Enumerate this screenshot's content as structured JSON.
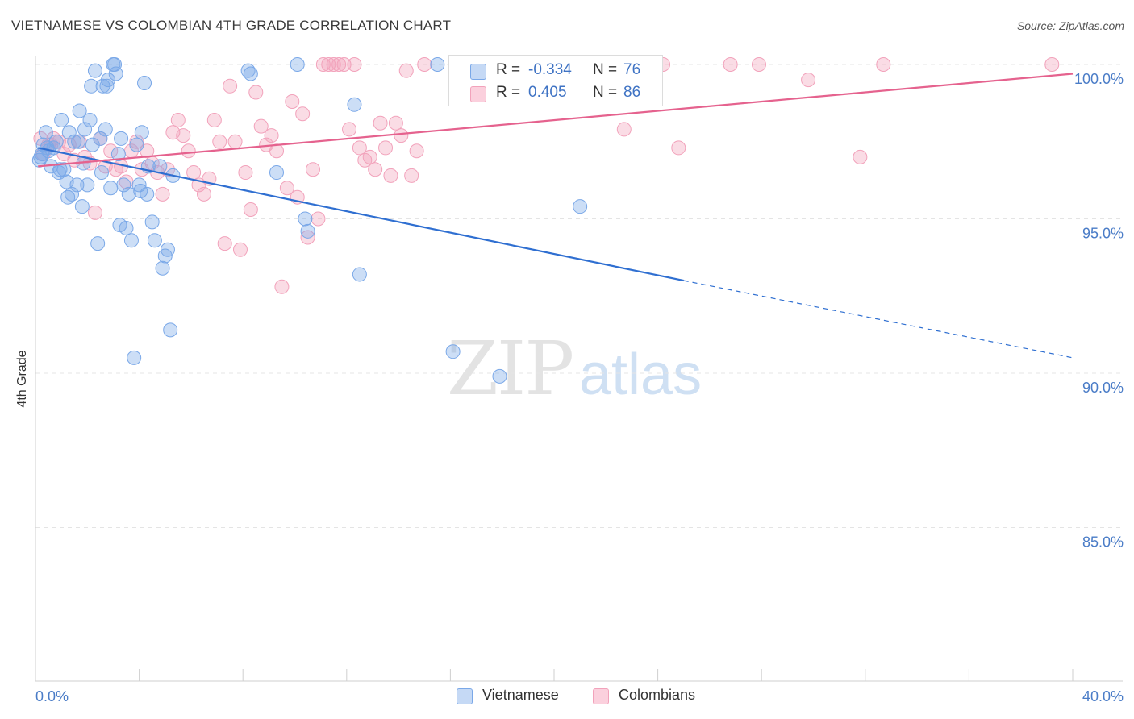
{
  "header": {
    "title": "VIETNAMESE VS COLOMBIAN 4TH GRADE CORRELATION CHART",
    "source": "Source: ZipAtlas.com"
  },
  "watermark": {
    "zip": "ZIP",
    "atlas": "atlas"
  },
  "legend": {
    "vietnamese": {
      "r_label": "R =",
      "r_value": "-0.334",
      "n_label": "N =",
      "n_value": "76"
    },
    "colombians": {
      "r_label": "R =",
      "r_value": "0.405",
      "n_label": "N =",
      "n_value": "86"
    }
  },
  "bottom_legend": {
    "vietnamese": "Vietnamese",
    "colombians": "Colombians"
  },
  "colors": {
    "vietnamese": "#7aa8e8",
    "vietnamese_line": "#2f6fd1",
    "colombians": "#f2a2bb",
    "colombians_line": "#e5628e",
    "tick_text": "#4a7cc7"
  },
  "chart_data": {
    "type": "scatter",
    "title": "VIETNAMESE VS COLOMBIAN 4TH GRADE CORRELATION CHART",
    "xlabel": "",
    "ylabel": "4th Grade",
    "xlim": [
      0,
      40
    ],
    "ylim": [
      80.5,
      100.8
    ],
    "x_tick_labels": [
      {
        "value": 0,
        "label": "0.0%"
      },
      {
        "value": 40,
        "label": "40.0%"
      }
    ],
    "y_tick_labels": [
      {
        "value": 100,
        "label": "100.0%"
      },
      {
        "value": 95,
        "label": "95.0%"
      },
      {
        "value": 90,
        "label": "90.0%"
      },
      {
        "value": 85,
        "label": "85.0%"
      }
    ],
    "grid": "horizontal dashed",
    "legend_position": "top-center",
    "series": [
      {
        "name": "Vietnamese",
        "trend": {
          "x0": 0.1,
          "y0": 97.3,
          "x1": 25.0,
          "y1": 93.0,
          "dash_to_x": 40.0,
          "dash_to_y": 90.5
        },
        "points": [
          [
            0.2,
            97.0
          ],
          [
            0.3,
            97.4
          ],
          [
            0.4,
            97.8
          ],
          [
            0.5,
            97.2
          ],
          [
            0.6,
            96.7
          ],
          [
            0.7,
            97.3
          ],
          [
            0.8,
            97.5
          ],
          [
            0.9,
            96.5
          ],
          [
            1.0,
            98.2
          ],
          [
            1.1,
            96.6
          ],
          [
            1.2,
            96.2
          ],
          [
            1.3,
            97.8
          ],
          [
            1.4,
            95.8
          ],
          [
            1.5,
            97.5
          ],
          [
            1.6,
            96.1
          ],
          [
            1.7,
            98.5
          ],
          [
            1.8,
            95.4
          ],
          [
            1.9,
            97.9
          ],
          [
            2.0,
            96.1
          ],
          [
            2.1,
            98.2
          ],
          [
            2.2,
            97.4
          ],
          [
            2.3,
            99.8
          ],
          [
            2.4,
            94.2
          ],
          [
            2.5,
            97.6
          ],
          [
            2.6,
            99.3
          ],
          [
            2.7,
            97.9
          ],
          [
            2.8,
            99.5
          ],
          [
            2.9,
            96.0
          ],
          [
            3.0,
            100.0
          ],
          [
            3.1,
            99.7
          ],
          [
            3.2,
            97.1
          ],
          [
            3.3,
            97.6
          ],
          [
            3.4,
            96.1
          ],
          [
            3.5,
            94.7
          ],
          [
            3.6,
            95.8
          ],
          [
            3.7,
            94.3
          ],
          [
            3.8,
            90.5
          ],
          [
            3.9,
            97.4
          ],
          [
            4.0,
            96.1
          ],
          [
            4.1,
            97.8
          ],
          [
            4.2,
            99.4
          ],
          [
            4.3,
            95.8
          ],
          [
            4.5,
            94.9
          ],
          [
            4.6,
            94.3
          ],
          [
            4.8,
            96.7
          ],
          [
            4.9,
            93.4
          ],
          [
            5.0,
            93.8
          ],
          [
            5.1,
            94.0
          ],
          [
            5.2,
            91.4
          ],
          [
            5.3,
            96.4
          ],
          [
            8.2,
            99.8
          ],
          [
            8.3,
            99.7
          ],
          [
            9.3,
            96.5
          ],
          [
            10.1,
            100.0
          ],
          [
            10.4,
            95.0
          ],
          [
            10.5,
            94.6
          ],
          [
            12.3,
            98.7
          ],
          [
            12.5,
            93.2
          ],
          [
            15.5,
            100.0
          ],
          [
            16.1,
            90.7
          ],
          [
            17.9,
            89.9
          ],
          [
            21.0,
            95.4
          ],
          [
            0.25,
            97.1
          ],
          [
            1.25,
            95.7
          ],
          [
            2.15,
            99.3
          ],
          [
            3.25,
            94.8
          ],
          [
            4.05,
            95.9
          ],
          [
            0.45,
            97.3
          ],
          [
            1.65,
            97.5
          ],
          [
            2.55,
            96.5
          ],
          [
            0.95,
            96.6
          ],
          [
            1.85,
            96.8
          ],
          [
            2.75,
            99.3
          ],
          [
            0.15,
            96.9
          ],
          [
            3.05,
            100.0
          ],
          [
            4.35,
            96.7
          ]
        ]
      },
      {
        "name": "Colombians",
        "trend": {
          "x0": 0.1,
          "y0": 96.7,
          "x1": 40.0,
          "y1": 99.7
        },
        "points": [
          [
            0.2,
            97.6
          ],
          [
            0.3,
            97.1
          ],
          [
            0.5,
            97.4
          ],
          [
            0.7,
            97.6
          ],
          [
            0.9,
            97.5
          ],
          [
            1.1,
            97.1
          ],
          [
            1.3,
            97.4
          ],
          [
            1.5,
            96.9
          ],
          [
            1.7,
            97.5
          ],
          [
            1.9,
            97.0
          ],
          [
            2.1,
            96.8
          ],
          [
            2.3,
            95.2
          ],
          [
            2.5,
            97.6
          ],
          [
            2.7,
            96.7
          ],
          [
            2.9,
            97.2
          ],
          [
            3.1,
            96.6
          ],
          [
            3.3,
            96.7
          ],
          [
            3.5,
            96.2
          ],
          [
            3.7,
            97.2
          ],
          [
            3.9,
            97.5
          ],
          [
            4.1,
            96.6
          ],
          [
            4.3,
            97.2
          ],
          [
            4.5,
            96.8
          ],
          [
            4.7,
            96.5
          ],
          [
            4.9,
            95.8
          ],
          [
            5.1,
            96.6
          ],
          [
            5.3,
            97.8
          ],
          [
            5.5,
            98.2
          ],
          [
            5.7,
            97.7
          ],
          [
            5.9,
            97.2
          ],
          [
            6.1,
            96.5
          ],
          [
            6.3,
            96.1
          ],
          [
            6.5,
            95.8
          ],
          [
            6.7,
            96.3
          ],
          [
            6.9,
            98.2
          ],
          [
            7.1,
            97.5
          ],
          [
            7.3,
            94.2
          ],
          [
            7.5,
            99.3
          ],
          [
            7.7,
            97.5
          ],
          [
            7.9,
            94.0
          ],
          [
            8.1,
            96.5
          ],
          [
            8.3,
            95.3
          ],
          [
            8.5,
            99.1
          ],
          [
            8.7,
            98.0
          ],
          [
            8.9,
            97.4
          ],
          [
            9.1,
            97.7
          ],
          [
            9.3,
            97.2
          ],
          [
            9.5,
            92.8
          ],
          [
            9.7,
            96.0
          ],
          [
            9.9,
            98.8
          ],
          [
            10.1,
            95.7
          ],
          [
            10.3,
            98.4
          ],
          [
            10.5,
            94.4
          ],
          [
            10.7,
            96.6
          ],
          [
            10.9,
            95.0
          ],
          [
            11.1,
            100.0
          ],
          [
            11.3,
            100.0
          ],
          [
            11.5,
            100.0
          ],
          [
            11.7,
            100.0
          ],
          [
            11.9,
            100.0
          ],
          [
            12.1,
            97.9
          ],
          [
            12.3,
            100.0
          ],
          [
            12.5,
            97.3
          ],
          [
            12.7,
            96.9
          ],
          [
            12.9,
            97.0
          ],
          [
            13.1,
            96.6
          ],
          [
            13.3,
            98.1
          ],
          [
            13.5,
            97.3
          ],
          [
            13.7,
            96.4
          ],
          [
            13.9,
            98.1
          ],
          [
            14.1,
            97.7
          ],
          [
            14.3,
            99.8
          ],
          [
            14.5,
            96.4
          ],
          [
            14.7,
            97.2
          ],
          [
            15.0,
            100.0
          ],
          [
            18.0,
            100.0
          ],
          [
            22.7,
            97.9
          ],
          [
            24.2,
            100.0
          ],
          [
            24.8,
            97.3
          ],
          [
            26.8,
            100.0
          ],
          [
            27.9,
            100.0
          ],
          [
            29.8,
            99.5
          ],
          [
            31.8,
            97.0
          ],
          [
            32.7,
            100.0
          ],
          [
            39.2,
            100.0
          ],
          [
            0.6,
            97.4
          ]
        ]
      }
    ]
  }
}
